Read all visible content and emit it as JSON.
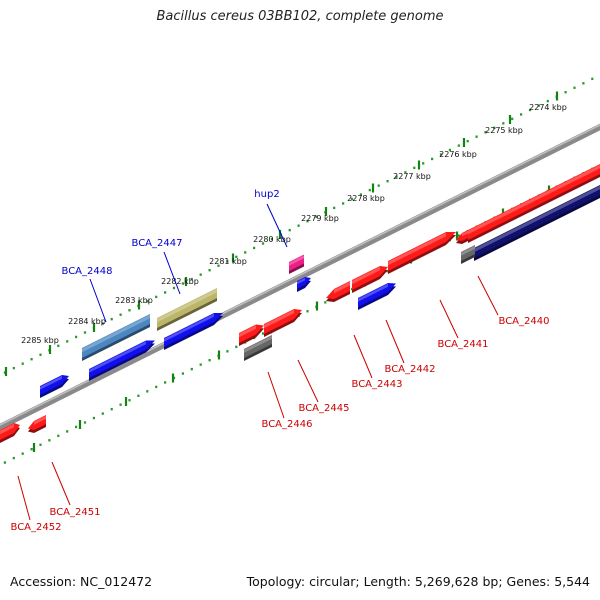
{
  "title": "Bacillus cereus 03BB102, complete genome",
  "footer": {
    "accession": "Accession: NC_012472",
    "summary": "Topology: circular; Length: 5,269,628 bp; Genes: 5,544"
  },
  "colors": {
    "backbone": "#8a8a8a",
    "ruler_major": "#128212",
    "ruler_minor": "#2a9a2a",
    "red_gene": "#ff1a1a",
    "blue_gene": "#1010ee",
    "navy_gene": "#10106e",
    "gray_gene": "#666666",
    "steelblue_gene": "#4a86c0",
    "olive_gene": "#bdb66a",
    "magenta_gene": "#ee1e88",
    "red_label": "#cc0000",
    "blue_label": "#0000cc"
  },
  "ruler": {
    "unit": "kbp",
    "labels": [
      "2274 kbp",
      "2275 kbp",
      "2276 kbp",
      "2277 kbp",
      "2278 kbp",
      "2279 kbp",
      "2280 kbp",
      "2281 kbp",
      "2282 kbp",
      "2283 kbp",
      "2284 kbp",
      "2285 kbp"
    ]
  },
  "genes": [
    {
      "name": "hup2",
      "color": "magenta",
      "label_color": "blue"
    },
    {
      "name": "BCA_2447",
      "color": "olive",
      "label_color": "blue"
    },
    {
      "name": "BCA_2448",
      "color": "steelblue",
      "label_color": "blue"
    },
    {
      "name": "BCA_2440",
      "color": "red",
      "label_color": "red"
    },
    {
      "name": "BCA_2441",
      "color": "red",
      "label_color": "red"
    },
    {
      "name": "BCA_2442",
      "color": "blue",
      "label_color": "red"
    },
    {
      "name": "BCA_2443",
      "color": "red",
      "label_color": "red"
    },
    {
      "name": "BCA_2445",
      "color": "red",
      "label_color": "red"
    },
    {
      "name": "BCA_2446",
      "color": "gray",
      "label_color": "red"
    },
    {
      "name": "BCA_2451",
      "color": "red",
      "label_color": "red"
    },
    {
      "name": "BCA_2452",
      "color": "red",
      "label_color": "red"
    }
  ]
}
